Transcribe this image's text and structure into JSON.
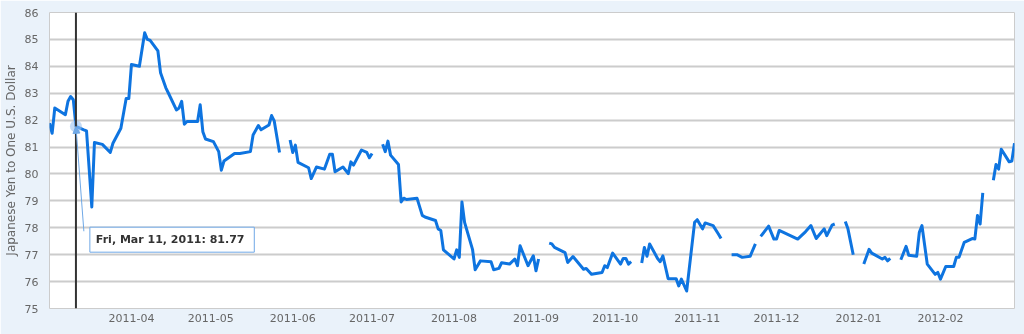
{
  "chart_data": {
    "type": "line",
    "ylabel": "Japanese Yen to One U.S. Dollar",
    "xlim": [
      "2011-03-01",
      "2012-02-29"
    ],
    "ylim": [
      75,
      86
    ],
    "xticks": [
      {
        "value": "2011-04-01",
        "label": "2011-04"
      },
      {
        "value": "2011-05-01",
        "label": "2011-05"
      },
      {
        "value": "2011-06-01",
        "label": "2011-06"
      },
      {
        "value": "2011-07-01",
        "label": "2011-07"
      },
      {
        "value": "2011-08-01",
        "label": "2011-08"
      },
      {
        "value": "2011-09-01",
        "label": "2011-09"
      },
      {
        "value": "2011-10-01",
        "label": "2011-10"
      },
      {
        "value": "2011-11-01",
        "label": "2011-11"
      },
      {
        "value": "2011-12-01",
        "label": "2011-12"
      },
      {
        "value": "2012-01-01",
        "label": "2012-01"
      },
      {
        "value": "2012-02-01",
        "label": "2012-02"
      }
    ],
    "yticks": [
      75,
      76,
      77,
      78,
      79,
      80,
      81,
      82,
      83,
      84,
      85,
      86
    ],
    "grid": "y",
    "marker": "none",
    "line_style": "solid",
    "ref_lines": [
      {
        "axis": "x",
        "value": "2011-03-11",
        "color": "#333333"
      }
    ],
    "annotations": [
      {
        "text": "Fri, Mar 11, 2011:  81.77",
        "x": "2011-03-11",
        "y": 81.77
      }
    ],
    "x": [
      "2011-03-01",
      "2011-03-02",
      "2011-03-03",
      "2011-03-07",
      "2011-03-08",
      "2011-03-09",
      "2011-03-10",
      "2011-03-11",
      "2011-03-14",
      "2011-03-15",
      "2011-03-16",
      "2011-03-17",
      "2011-03-18",
      "2011-03-21",
      "2011-03-24",
      "2011-03-25",
      "2011-03-28",
      "2011-03-30",
      "2011-03-31",
      "2011-04-01",
      "2011-04-04",
      "2011-04-06",
      "2011-04-07",
      "2011-04-08",
      "2011-04-11",
      "2011-04-12",
      "2011-04-14",
      "2011-04-15",
      "2011-04-18",
      "2011-04-19",
      "2011-04-20",
      "2011-04-21",
      "2011-04-22",
      "2011-04-26",
      "2011-04-27",
      "2011-04-28",
      "2011-04-29",
      "2011-05-02",
      "2011-05-04",
      "2011-05-05",
      "2011-05-06",
      "2011-05-10",
      "2011-05-12",
      "2011-05-16",
      "2011-05-17",
      "2011-05-19",
      "2011-05-20",
      "2011-05-23",
      "2011-05-24",
      "2011-05-25",
      "2011-05-27",
      "2011-05-30",
      "2011-05-31",
      "2011-06-01",
      "2011-06-02",
      "2011-06-03",
      "2011-06-07",
      "2011-06-08",
      "2011-06-10",
      "2011-06-13",
      "2011-06-15",
      "2011-06-16",
      "2011-06-17",
      "2011-06-20",
      "2011-06-22",
      "2011-06-23",
      "2011-06-24",
      "2011-06-27",
      "2011-06-29",
      "2011-06-30",
      "2011-07-01",
      "2011-07-04",
      "2011-07-05",
      "2011-07-06",
      "2011-07-07",
      "2011-07-08",
      "2011-07-11",
      "2011-07-12",
      "2011-07-13",
      "2011-07-14",
      "2011-07-18",
      "2011-07-20",
      "2011-07-21",
      "2011-07-25",
      "2011-07-26",
      "2011-07-27",
      "2011-07-28",
      "2011-08-01",
      "2011-08-02",
      "2011-08-03",
      "2011-08-04",
      "2011-08-05",
      "2011-08-08",
      "2011-08-09",
      "2011-08-11",
      "2011-08-15",
      "2011-08-16",
      "2011-08-18",
      "2011-08-19",
      "2011-08-22",
      "2011-08-24",
      "2011-08-25",
      "2011-08-26",
      "2011-08-29",
      "2011-08-31",
      "2011-09-01",
      "2011-09-02",
      "2011-09-05",
      "2011-09-06",
      "2011-09-07",
      "2011-09-08",
      "2011-09-12",
      "2011-09-13",
      "2011-09-15",
      "2011-09-19",
      "2011-09-20",
      "2011-09-22",
      "2011-09-26",
      "2011-09-27",
      "2011-09-28",
      "2011-09-30",
      "2011-10-03",
      "2011-10-04",
      "2011-10-05",
      "2011-10-06",
      "2011-10-07",
      "2011-10-10",
      "2011-10-11",
      "2011-10-12",
      "2011-10-13",
      "2011-10-14",
      "2011-10-17",
      "2011-10-18",
      "2011-10-19",
      "2011-10-21",
      "2011-10-24",
      "2011-10-25",
      "2011-10-26",
      "2011-10-28",
      "2011-10-31",
      "2011-11-01",
      "2011-11-03",
      "2011-11-04",
      "2011-11-07",
      "2011-11-09",
      "2011-11-10",
      "2011-11-11",
      "2011-11-14",
      "2011-11-16",
      "2011-11-18",
      "2011-11-21",
      "2011-11-23",
      "2011-11-24",
      "2011-11-25",
      "2011-11-28",
      "2011-11-30",
      "2011-12-01",
      "2011-12-02",
      "2011-12-09",
      "2011-12-12",
      "2011-12-14",
      "2011-12-16",
      "2011-12-19",
      "2011-12-20",
      "2011-12-22",
      "2011-12-23",
      "2011-12-26",
      "2011-12-27",
      "2011-12-28",
      "2011-12-30",
      "2012-01-02",
      "2012-01-03",
      "2012-01-05",
      "2012-01-06",
      "2012-01-10",
      "2012-01-11",
      "2012-01-12",
      "2012-01-13",
      "2012-01-16",
      "2012-01-17",
      "2012-01-19",
      "2012-01-20",
      "2012-01-23",
      "2012-01-24",
      "2012-01-25",
      "2012-01-27",
      "2012-01-30",
      "2012-01-31",
      "2012-02-01",
      "2012-02-03",
      "2012-02-06",
      "2012-02-07",
      "2012-02-08",
      "2012-02-10",
      "2012-02-13",
      "2012-02-14",
      "2012-02-15",
      "2012-02-16",
      "2012-02-17",
      "2012-02-20",
      "2012-02-21",
      "2012-02-22",
      "2012-02-23",
      "2012-02-24",
      "2012-02-27",
      "2012-02-28",
      "2012-02-29"
    ],
    "series": [
      {
        "color": "#0e74e0",
        "values": [
          81.89,
          81.51,
          82.45,
          82.2,
          82.7,
          82.88,
          82.76,
          81.77,
          81.64,
          81.6,
          80.2,
          78.77,
          81.17,
          81.1,
          80.8,
          81.14,
          81.7,
          82.8,
          82.8,
          84.07,
          84.0,
          85.25,
          85.0,
          84.97,
          84.57,
          83.76,
          83.2,
          83.0,
          82.38,
          82.45,
          82.7,
          81.85,
          81.95,
          81.95,
          82.57,
          81.57,
          81.3,
          81.2,
          80.83,
          80.14,
          80.48,
          80.76,
          80.76,
          80.83,
          81.45,
          81.8,
          81.64,
          81.82,
          82.17,
          81.97,
          80.8,
          null,
          81.26,
          80.8,
          81.07,
          80.43,
          80.23,
          79.83,
          80.26,
          80.18,
          80.73,
          80.73,
          80.08,
          80.26,
          80.01,
          80.45,
          80.33,
          80.89,
          80.8,
          80.6,
          80.76,
          null,
          81.1,
          80.83,
          81.22,
          80.7,
          80.35,
          78.96,
          79.1,
          79.05,
          79.1,
          78.46,
          78.4,
          78.27,
          77.96,
          77.9,
          77.18,
          76.84,
          77.18,
          76.9,
          78.96,
          78.2,
          77.2,
          76.44,
          76.77,
          76.74,
          76.44,
          76.49,
          76.7,
          76.65,
          76.84,
          76.59,
          77.33,
          76.59,
          76.96,
          76.4,
          76.84,
          null,
          77.43,
          77.4,
          77.27,
          77.08,
          76.71,
          76.93,
          76.46,
          76.49,
          76.27,
          76.34,
          76.59,
          76.52,
          77.06,
          76.65,
          76.86,
          76.86,
          76.65,
          76.74,
          null,
          76.69,
          77.27,
          76.94,
          77.4,
          76.86,
          76.74,
          76.96,
          76.11,
          76.11,
          75.84,
          76.09,
          75.65,
          78.2,
          78.3,
          77.96,
          78.18,
          78.08,
          77.77,
          77.6,
          null,
          77.0,
          77.0,
          76.9,
          76.94,
          77.4,
          null,
          77.68,
          78.06,
          77.58,
          77.58,
          77.9,
          77.58,
          77.86,
          78.08,
          77.6,
          77.96,
          77.71,
          78.1,
          78.14,
          null,
          78.23,
          77.96,
          77.0,
          null,
          76.65,
          77.2,
          77.06,
          76.84,
          76.9,
          76.77,
          76.86,
          null,
          76.81,
          77.31,
          76.98,
          76.94,
          77.83,
          78.08,
          76.65,
          76.27,
          76.34,
          76.09,
          76.56,
          76.56,
          76.9,
          76.9,
          77.46,
          77.6,
          77.58,
          78.46,
          78.14,
          79.3,
          null,
          79.77,
          80.35,
          80.18,
          80.92,
          80.45,
          80.48,
          81.14
        ]
      }
    ]
  }
}
